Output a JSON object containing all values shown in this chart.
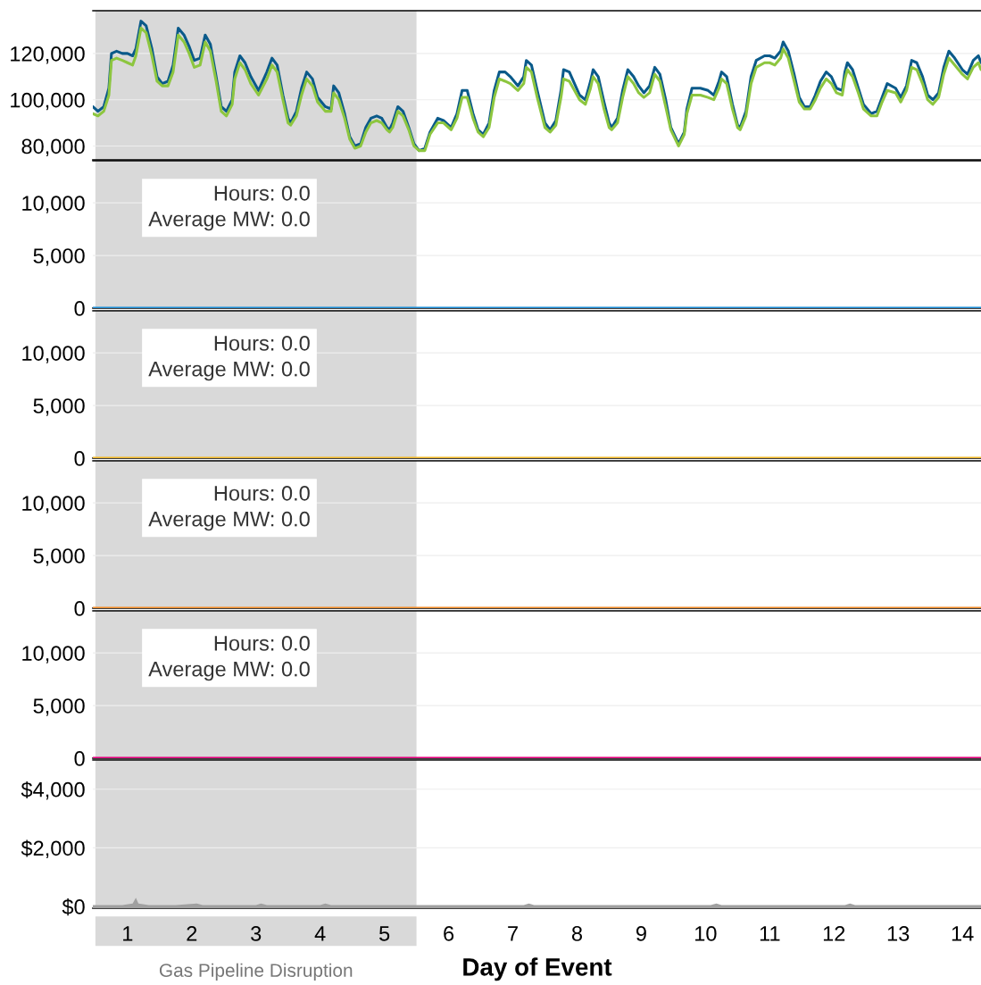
{
  "chart_data": [
    {
      "type": "line",
      "x": [
        0.46,
        0.54,
        0.63,
        0.71,
        0.75,
        0.83,
        0.92,
        1.0,
        1.08,
        1.13,
        1.21,
        1.29,
        1.38,
        1.46,
        1.54,
        1.63,
        1.71,
        1.79,
        1.88,
        1.96,
        2.04,
        2.13,
        2.21,
        2.29,
        2.38,
        2.46,
        2.54,
        2.63,
        2.67,
        2.75,
        2.83,
        2.92,
        3.04,
        3.17,
        3.25,
        3.33,
        3.42,
        3.5,
        3.54,
        3.63,
        3.71,
        3.79,
        3.88,
        3.96,
        4.08,
        4.17,
        4.21,
        4.29,
        4.38,
        4.46,
        4.54,
        4.63,
        4.71,
        4.79,
        4.88,
        4.96,
        5.04,
        5.08,
        5.13,
        5.21,
        5.29,
        5.38,
        5.46,
        5.54,
        5.63,
        5.71,
        5.83,
        5.92,
        6.0,
        6.04,
        6.13,
        6.21,
        6.29,
        6.38,
        6.46,
        6.54,
        6.63,
        6.71,
        6.79,
        6.88,
        6.96,
        7.08,
        7.17,
        7.21,
        7.29,
        7.38,
        7.5,
        7.58,
        7.67,
        7.75,
        7.79,
        7.88,
        7.96,
        8.04,
        8.13,
        8.21,
        8.25,
        8.33,
        8.42,
        8.5,
        8.54,
        8.63,
        8.71,
        8.79,
        8.88,
        8.96,
        9.04,
        9.13,
        9.21,
        9.29,
        9.38,
        9.46,
        9.58,
        9.67,
        9.71,
        9.79,
        9.92,
        10.04,
        10.13,
        10.21,
        10.25,
        10.33,
        10.42,
        10.5,
        10.54,
        10.63,
        10.71,
        10.79,
        10.92,
        11.0,
        11.08,
        11.17,
        11.21,
        11.29,
        11.38,
        11.46,
        11.54,
        11.63,
        11.71,
        11.79,
        11.88,
        11.96,
        12.04,
        12.13,
        12.17,
        12.21,
        12.29,
        12.38,
        12.46,
        12.58,
        12.67,
        12.75,
        12.83,
        12.96,
        13.04,
        13.13,
        13.21,
        13.29,
        13.38,
        13.46,
        13.54,
        13.63,
        13.71,
        13.79,
        13.88,
        14.0,
        14.08,
        14.17,
        14.25,
        14.29
      ],
      "series": [
        {
          "color": "#0a5a8a",
          "values": [
            97000,
            95000,
            97000,
            105000,
            120000,
            121000,
            120000,
            120000,
            119000,
            122000,
            134000,
            132000,
            122000,
            110000,
            107000,
            108000,
            115000,
            131000,
            128000,
            123000,
            117000,
            118000,
            128000,
            124000,
            110000,
            97000,
            95000,
            100000,
            112000,
            119000,
            116000,
            110000,
            104000,
            112000,
            118000,
            115000,
            102000,
            92000,
            90000,
            95000,
            105000,
            112000,
            109000,
            101000,
            97000,
            96000,
            106000,
            103000,
            94000,
            84000,
            80000,
            81000,
            88000,
            92000,
            93000,
            92000,
            88000,
            87000,
            90000,
            97000,
            95000,
            88000,
            81000,
            78000,
            79000,
            86000,
            92000,
            91000,
            89000,
            88000,
            94000,
            104000,
            104000,
            94000,
            87000,
            85000,
            90000,
            104000,
            112000,
            112000,
            110000,
            106000,
            110000,
            117000,
            115000,
            104000,
            90000,
            87000,
            91000,
            104000,
            113000,
            112000,
            107000,
            102000,
            100000,
            108000,
            113000,
            110000,
            99000,
            90000,
            88000,
            92000,
            104000,
            113000,
            110000,
            106000,
            103000,
            106000,
            114000,
            111000,
            100000,
            88000,
            81000,
            86000,
            96000,
            105000,
            105000,
            104000,
            102000,
            108000,
            112000,
            110000,
            98000,
            89000,
            88000,
            95000,
            110000,
            117000,
            119000,
            119000,
            118000,
            121000,
            125000,
            121000,
            111000,
            101000,
            97000,
            97000,
            102000,
            108000,
            112000,
            110000,
            105000,
            104000,
            112000,
            116000,
            113000,
            105000,
            98000,
            94000,
            95000,
            101000,
            107000,
            105000,
            101000,
            106000,
            117000,
            116000,
            110000,
            102000,
            100000,
            103000,
            114000,
            121000,
            118000,
            113000,
            111000,
            117000,
            119000,
            116000
          ]
        },
        {
          "color": "#8dc63f",
          "values": [
            94000,
            93000,
            95000,
            102000,
            117000,
            118000,
            117000,
            116000,
            115000,
            119000,
            131000,
            129000,
            119000,
            108000,
            106000,
            106000,
            112000,
            128000,
            125000,
            120000,
            114000,
            115000,
            125000,
            121000,
            108000,
            95000,
            93000,
            98000,
            109000,
            116000,
            113000,
            107000,
            102000,
            109000,
            115000,
            112000,
            100000,
            90000,
            89000,
            93000,
            102000,
            109000,
            106000,
            99000,
            95000,
            95000,
            103000,
            100000,
            92000,
            83000,
            79000,
            80000,
            86000,
            90000,
            91000,
            90000,
            87000,
            86000,
            88000,
            95000,
            93000,
            87000,
            80000,
            78000,
            78000,
            85000,
            90000,
            90000,
            88000,
            87000,
            92000,
            101000,
            101000,
            92000,
            86000,
            84000,
            88000,
            101000,
            109000,
            108000,
            107000,
            104000,
            107000,
            114000,
            112000,
            101000,
            88000,
            86000,
            89000,
            101000,
            109000,
            108000,
            104000,
            100000,
            98000,
            105000,
            110000,
            107000,
            96000,
            88000,
            87000,
            90000,
            101000,
            110000,
            107000,
            103000,
            101000,
            103000,
            111000,
            108000,
            97000,
            87000,
            80000,
            85000,
            94000,
            102000,
            102000,
            101000,
            100000,
            105000,
            109000,
            107000,
            96000,
            88000,
            87000,
            93000,
            107000,
            114000,
            116000,
            116000,
            115000,
            118000,
            122000,
            118000,
            108000,
            99000,
            96000,
            96000,
            100000,
            105000,
            109000,
            107000,
            103000,
            102000,
            109000,
            113000,
            110000,
            103000,
            96000,
            93000,
            93000,
            99000,
            104000,
            103000,
            99000,
            104000,
            114000,
            113000,
            107000,
            100000,
            98000,
            101000,
            111000,
            118000,
            115000,
            111000,
            109000,
            114000,
            116000,
            113000
          ]
        }
      ],
      "xlim": [
        0.46,
        14.29
      ],
      "ylim": [
        74000,
        138500
      ],
      "yticks": [
        {
          "value": 80000,
          "label": "80,000"
        },
        {
          "value": 100000,
          "label": "100,000"
        },
        {
          "value": 120000,
          "label": "120,000"
        }
      ],
      "tick_labels": "y",
      "grid": "y",
      "bands": [
        {
          "axis": "x",
          "from": 0.5,
          "to": 5.5,
          "color": "#d9d9d9"
        }
      ]
    },
    {
      "type": "line",
      "x": [
        0.46,
        14.29
      ],
      "series": [
        {
          "color": "#1f8fd8",
          "values": [
            0,
            0
          ]
        }
      ],
      "xlim": [
        0.46,
        14.29
      ],
      "ylim": [
        0,
        14000
      ],
      "yticks": [
        0,
        {
          "value": 5000,
          "label": "5,000"
        },
        {
          "value": 10000,
          "label": "10,000"
        }
      ],
      "tick_labels": "y",
      "grid": "y",
      "bands": [
        {
          "axis": "x",
          "from": 0.5,
          "to": 5.5,
          "color": "#d9d9d9"
        }
      ],
      "annotations": [
        "Hours: 0.0\nAverage MW: 0.0"
      ]
    },
    {
      "type": "line",
      "x": [
        0.46,
        14.29
      ],
      "series": [
        {
          "color": "#f2b92b",
          "values": [
            0,
            0
          ]
        }
      ],
      "xlim": [
        0.46,
        14.29
      ],
      "ylim": [
        0,
        14000
      ],
      "yticks": [
        0,
        {
          "value": 5000,
          "label": "5,000"
        },
        {
          "value": 10000,
          "label": "10,000"
        }
      ],
      "tick_labels": "y",
      "grid": "y",
      "bands": [
        {
          "axis": "x",
          "from": 0.5,
          "to": 5.5,
          "color": "#d9d9d9"
        }
      ],
      "annotations": [
        "Hours: 0.0\nAverage MW: 0.0"
      ]
    },
    {
      "type": "line",
      "x": [
        0.46,
        14.29
      ],
      "series": [
        {
          "color": "#f28e2b",
          "values": [
            0,
            0
          ]
        }
      ],
      "xlim": [
        0.46,
        14.29
      ],
      "ylim": [
        0,
        14000
      ],
      "yticks": [
        0,
        {
          "value": 5000,
          "label": "5,000"
        },
        {
          "value": 10000,
          "label": "10,000"
        }
      ],
      "tick_labels": "y",
      "grid": "y",
      "bands": [
        {
          "axis": "x",
          "from": 0.5,
          "to": 5.5,
          "color": "#d9d9d9"
        }
      ],
      "annotations": [
        "Hours: 0.0\nAverage MW: 0.0"
      ]
    },
    {
      "type": "line",
      "x": [
        0.46,
        14.29
      ],
      "series": [
        {
          "color": "#e6007e",
          "values": [
            0,
            0
          ]
        }
      ],
      "xlim": [
        0.46,
        14.29
      ],
      "ylim": [
        0,
        14000
      ],
      "yticks": [
        0,
        {
          "value": 5000,
          "label": "5,000"
        },
        {
          "value": 10000,
          "label": "10,000"
        }
      ],
      "tick_labels": "y",
      "grid": "y",
      "bands": [
        {
          "axis": "x",
          "from": 0.5,
          "to": 5.5,
          "color": "#d9d9d9"
        }
      ],
      "annotations": [
        "Hours: 0.0\nAverage MW: 0.0"
      ]
    },
    {
      "type": "area",
      "x": [
        0.46,
        0.71,
        0.92,
        1.08,
        1.13,
        1.17,
        1.33,
        1.75,
        2.08,
        2.17,
        3.0,
        3.08,
        3.17,
        4.0,
        4.08,
        4.17,
        5.08,
        5.92,
        7.17,
        7.25,
        7.33,
        8.0,
        10.08,
        10.17,
        10.25,
        12.17,
        12.25,
        12.33,
        14.29
      ],
      "series": [
        {
          "color": "#a0a0a0",
          "values": [
            50,
            50,
            50,
            100,
            300,
            100,
            50,
            50,
            100,
            50,
            50,
            100,
            50,
            50,
            100,
            50,
            50,
            50,
            50,
            100,
            50,
            50,
            50,
            100,
            50,
            50,
            100,
            50,
            50
          ]
        }
      ],
      "xlim": [
        0.46,
        14.29
      ],
      "xticks": [
        1,
        2,
        3,
        4,
        5,
        6,
        7,
        8,
        9,
        10,
        11,
        12,
        13,
        14
      ],
      "ylim": [
        -60,
        5000
      ],
      "yticks": [
        {
          "value": 0,
          "label": "$0"
        },
        {
          "value": 2000,
          "label": "$2,000"
        },
        {
          "value": 4000,
          "label": "$4,000"
        }
      ],
      "grid": "y",
      "xlabel": "Day of Event",
      "bands": [
        {
          "axis": "x",
          "from": 0.5,
          "to": 5.5,
          "color": "#d9d9d9",
          "label": "Gas Pipeline Disruption"
        }
      ]
    }
  ]
}
